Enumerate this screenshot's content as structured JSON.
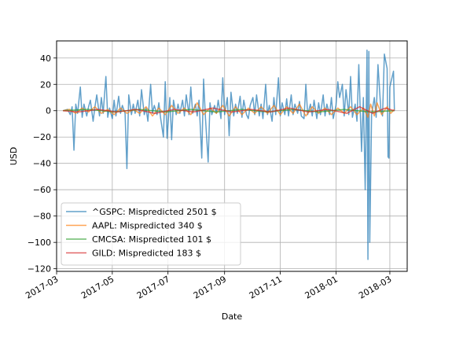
{
  "chart_data": {
    "type": "line",
    "title": "",
    "xlabel": "Date",
    "ylabel": "USD",
    "grid": true,
    "legend_position": "lower-left",
    "xlim": [
      "2017-03-01",
      "2018-03-20"
    ],
    "ylim": [
      -122,
      53
    ],
    "x_ticks": [
      {
        "date": "2017-03-01",
        "label": "2017-03"
      },
      {
        "date": "2017-05-01",
        "label": "2017-05"
      },
      {
        "date": "2017-07-01",
        "label": "2017-07"
      },
      {
        "date": "2017-09-01",
        "label": "2017-09"
      },
      {
        "date": "2017-11-01",
        "label": "2017-11"
      },
      {
        "date": "2018-01-01",
        "label": "2018-01"
      },
      {
        "date": "2018-03-01",
        "label": "2018-03"
      }
    ],
    "y_ticks": [
      40,
      20,
      0,
      -20,
      -40,
      -60,
      -80,
      -100,
      -120
    ],
    "y_tick_labels": [
      "40",
      "20",
      "0",
      "−20",
      "−40",
      "−60",
      "−80",
      "−100",
      "−120"
    ],
    "series": [
      {
        "name": "^GSPC: Mispredicted 2501 $",
        "color": "#1f77b4",
        "points": [
          [
            "2017-03-08",
            0
          ],
          [
            "2017-03-13",
            1
          ],
          [
            "2017-03-16",
            -3
          ],
          [
            "2017-03-18",
            3
          ],
          [
            "2017-03-20",
            -30
          ],
          [
            "2017-03-22",
            5
          ],
          [
            "2017-03-24",
            -2
          ],
          [
            "2017-03-27",
            18
          ],
          [
            "2017-03-29",
            -5
          ],
          [
            "2017-03-31",
            5
          ],
          [
            "2017-04-03",
            -4
          ],
          [
            "2017-04-05",
            3
          ],
          [
            "2017-04-07",
            8
          ],
          [
            "2017-04-10",
            -8
          ],
          [
            "2017-04-12",
            3
          ],
          [
            "2017-04-14",
            12
          ],
          [
            "2017-04-17",
            -4
          ],
          [
            "2017-04-19",
            10
          ],
          [
            "2017-04-21",
            -2
          ],
          [
            "2017-04-24",
            26
          ],
          [
            "2017-04-26",
            -5
          ],
          [
            "2017-04-28",
            2
          ],
          [
            "2017-05-01",
            -6
          ],
          [
            "2017-05-03",
            8
          ],
          [
            "2017-05-05",
            -4
          ],
          [
            "2017-05-08",
            11
          ],
          [
            "2017-05-10",
            -2
          ],
          [
            "2017-05-12",
            4
          ],
          [
            "2017-05-15",
            -2
          ],
          [
            "2017-05-17",
            -44
          ],
          [
            "2017-05-19",
            12
          ],
          [
            "2017-05-22",
            -3
          ],
          [
            "2017-05-24",
            5
          ],
          [
            "2017-05-26",
            -2
          ],
          [
            "2017-05-29",
            8
          ],
          [
            "2017-05-31",
            -4
          ],
          [
            "2017-06-02",
            16
          ],
          [
            "2017-06-05",
            -3
          ],
          [
            "2017-06-07",
            2
          ],
          [
            "2017-06-09",
            -8
          ],
          [
            "2017-06-12",
            20
          ],
          [
            "2017-06-14",
            -2
          ],
          [
            "2017-06-16",
            4
          ],
          [
            "2017-06-19",
            -3
          ],
          [
            "2017-06-21",
            6
          ],
          [
            "2017-06-23",
            -6
          ],
          [
            "2017-06-26",
            -20
          ],
          [
            "2017-06-28",
            22
          ],
          [
            "2017-06-30",
            -21
          ],
          [
            "2017-07-03",
            10
          ],
          [
            "2017-07-05",
            -22
          ],
          [
            "2017-07-07",
            8
          ],
          [
            "2017-07-10",
            -3
          ],
          [
            "2017-07-12",
            5
          ],
          [
            "2017-07-14",
            -2
          ],
          [
            "2017-07-17",
            8
          ],
          [
            "2017-07-19",
            -4
          ],
          [
            "2017-07-21",
            12
          ],
          [
            "2017-07-24",
            -3
          ],
          [
            "2017-07-26",
            18
          ],
          [
            "2017-07-28",
            -2
          ],
          [
            "2017-07-31",
            5
          ],
          [
            "2017-08-02",
            -4
          ],
          [
            "2017-08-04",
            8
          ],
          [
            "2017-08-07",
            -36
          ],
          [
            "2017-08-09",
            24
          ],
          [
            "2017-08-11",
            -5
          ],
          [
            "2017-08-14",
            -39
          ],
          [
            "2017-08-16",
            6
          ],
          [
            "2017-08-18",
            -3
          ],
          [
            "2017-08-21",
            4
          ],
          [
            "2017-08-23",
            -2
          ],
          [
            "2017-08-25",
            8
          ],
          [
            "2017-08-28",
            -6
          ],
          [
            "2017-08-30",
            25
          ],
          [
            "2017-09-01",
            -3
          ],
          [
            "2017-09-04",
            10
          ],
          [
            "2017-09-06",
            -19
          ],
          [
            "2017-09-08",
            14
          ],
          [
            "2017-09-11",
            -4
          ],
          [
            "2017-09-13",
            5
          ],
          [
            "2017-09-15",
            -2
          ],
          [
            "2017-09-18",
            11
          ],
          [
            "2017-09-20",
            -5
          ],
          [
            "2017-09-22",
            8
          ],
          [
            "2017-09-25",
            -3
          ],
          [
            "2017-09-27",
            -6
          ],
          [
            "2017-09-29",
            4
          ],
          [
            "2017-10-02",
            10
          ],
          [
            "2017-10-04",
            -3
          ],
          [
            "2017-10-06",
            12
          ],
          [
            "2017-10-09",
            -4
          ],
          [
            "2017-10-11",
            5
          ],
          [
            "2017-10-13",
            -6
          ],
          [
            "2017-10-16",
            20
          ],
          [
            "2017-10-18",
            -3
          ],
          [
            "2017-10-20",
            4
          ],
          [
            "2017-10-23",
            -8
          ],
          [
            "2017-10-25",
            10
          ],
          [
            "2017-10-27",
            -3
          ],
          [
            "2017-10-30",
            25
          ],
          [
            "2017-11-01",
            -4
          ],
          [
            "2017-11-03",
            6
          ],
          [
            "2017-11-06",
            -3
          ],
          [
            "2017-11-08",
            9
          ],
          [
            "2017-11-10",
            -4
          ],
          [
            "2017-11-13",
            12
          ],
          [
            "2017-11-15",
            -3
          ],
          [
            "2017-11-17",
            5
          ],
          [
            "2017-11-20",
            -2
          ],
          [
            "2017-11-22",
            7
          ],
          [
            "2017-11-24",
            -4
          ],
          [
            "2017-11-27",
            -6
          ],
          [
            "2017-11-29",
            20
          ],
          [
            "2017-12-01",
            -3
          ],
          [
            "2017-12-04",
            5
          ],
          [
            "2017-12-06",
            -4
          ],
          [
            "2017-12-08",
            8
          ],
          [
            "2017-12-11",
            -6
          ],
          [
            "2017-12-13",
            6
          ],
          [
            "2017-12-15",
            -3
          ],
          [
            "2017-12-18",
            12
          ],
          [
            "2017-12-20",
            -4
          ],
          [
            "2017-12-22",
            5
          ],
          [
            "2017-12-25",
            -3
          ],
          [
            "2017-12-27",
            10
          ],
          [
            "2017-12-29",
            -6
          ],
          [
            "2018-01-01",
            4
          ],
          [
            "2018-01-03",
            22
          ],
          [
            "2018-01-05",
            10
          ],
          [
            "2018-01-08",
            20
          ],
          [
            "2018-01-10",
            -4
          ],
          [
            "2018-01-12",
            16
          ],
          [
            "2018-01-15",
            -3
          ],
          [
            "2018-01-17",
            26
          ],
          [
            "2018-01-19",
            -5
          ],
          [
            "2018-01-22",
            5
          ],
          [
            "2018-01-24",
            -8
          ],
          [
            "2018-01-26",
            35
          ],
          [
            "2018-01-29",
            -31
          ],
          [
            "2018-01-31",
            10
          ],
          [
            "2018-02-02",
            -60
          ],
          [
            "2018-02-04",
            46
          ],
          [
            "2018-02-05",
            -113
          ],
          [
            "2018-02-06",
            45
          ],
          [
            "2018-02-07",
            -100
          ],
          [
            "2018-02-09",
            -3
          ],
          [
            "2018-02-12",
            10
          ],
          [
            "2018-02-14",
            -5
          ],
          [
            "2018-02-16",
            35
          ],
          [
            "2018-02-19",
            2
          ],
          [
            "2018-02-21",
            -4
          ],
          [
            "2018-02-23",
            43
          ],
          [
            "2018-02-26",
            32
          ],
          [
            "2018-02-27",
            -35
          ],
          [
            "2018-02-28",
            -36
          ],
          [
            "2018-03-01",
            18
          ],
          [
            "2018-03-05",
            30
          ],
          [
            "2018-03-06",
            0
          ]
        ]
      },
      {
        "name": "AAPL: Mispredicted 340 $",
        "color": "#ff7f0e",
        "points": [
          [
            "2017-03-08",
            0
          ],
          [
            "2017-03-15",
            1
          ],
          [
            "2017-03-22",
            -2
          ],
          [
            "2017-03-29",
            2
          ],
          [
            "2017-04-05",
            -1
          ],
          [
            "2017-04-12",
            3
          ],
          [
            "2017-04-19",
            -2
          ],
          [
            "2017-04-26",
            1
          ],
          [
            "2017-05-03",
            -3
          ],
          [
            "2017-05-10",
            2
          ],
          [
            "2017-05-17",
            -2
          ],
          [
            "2017-05-24",
            1
          ],
          [
            "2017-05-31",
            -2
          ],
          [
            "2017-06-07",
            3
          ],
          [
            "2017-06-14",
            -4
          ],
          [
            "2017-06-21",
            2
          ],
          [
            "2017-06-28",
            -3
          ],
          [
            "2017-07-05",
            4
          ],
          [
            "2017-07-12",
            -2
          ],
          [
            "2017-07-19",
            2
          ],
          [
            "2017-07-26",
            -3
          ],
          [
            "2017-08-02",
            6
          ],
          [
            "2017-08-09",
            -3
          ],
          [
            "2017-08-16",
            2
          ],
          [
            "2017-08-23",
            -2
          ],
          [
            "2017-08-30",
            4
          ],
          [
            "2017-09-06",
            -4
          ],
          [
            "2017-09-13",
            3
          ],
          [
            "2017-09-20",
            -3
          ],
          [
            "2017-09-27",
            2
          ],
          [
            "2017-10-04",
            -2
          ],
          [
            "2017-10-11",
            3
          ],
          [
            "2017-10-18",
            -2
          ],
          [
            "2017-10-25",
            4
          ],
          [
            "2017-11-01",
            -3
          ],
          [
            "2017-11-08",
            3
          ],
          [
            "2017-11-15",
            -2
          ],
          [
            "2017-11-22",
            5
          ],
          [
            "2017-11-29",
            -4
          ],
          [
            "2017-12-06",
            3
          ],
          [
            "2017-12-13",
            -2
          ],
          [
            "2017-12-20",
            2
          ],
          [
            "2017-12-27",
            -3
          ],
          [
            "2018-01-03",
            2
          ],
          [
            "2018-01-10",
            -2
          ],
          [
            "2018-01-17",
            3
          ],
          [
            "2018-01-24",
            -3
          ],
          [
            "2018-01-31",
            2
          ],
          [
            "2018-02-05",
            -5
          ],
          [
            "2018-02-08",
            5
          ],
          [
            "2018-02-12",
            -4
          ],
          [
            "2018-02-15",
            6
          ],
          [
            "2018-02-20",
            -3
          ],
          [
            "2018-02-26",
            3
          ],
          [
            "2018-03-02",
            -2
          ],
          [
            "2018-03-06",
            1
          ]
        ]
      },
      {
        "name": "CMCSA: Mispredicted 101 $",
        "color": "#2ca02c",
        "points": [
          [
            "2017-03-08",
            0
          ],
          [
            "2017-04-05",
            1
          ],
          [
            "2017-05-03",
            -1
          ],
          [
            "2017-05-31",
            1
          ],
          [
            "2017-06-28",
            -1
          ],
          [
            "2017-07-26",
            1
          ],
          [
            "2017-08-23",
            -1
          ],
          [
            "2017-09-20",
            1
          ],
          [
            "2017-10-18",
            -1
          ],
          [
            "2017-11-15",
            1
          ],
          [
            "2017-12-13",
            -1
          ],
          [
            "2018-01-10",
            1
          ],
          [
            "2018-02-07",
            -1
          ],
          [
            "2018-03-06",
            0
          ]
        ]
      },
      {
        "name": "GILD: Mispredicted 183 $",
        "color": "#d62728",
        "points": [
          [
            "2017-03-08",
            0
          ],
          [
            "2017-03-25",
            -1
          ],
          [
            "2017-04-15",
            1
          ],
          [
            "2017-05-06",
            -1
          ],
          [
            "2017-05-27",
            1
          ],
          [
            "2017-06-17",
            -2
          ],
          [
            "2017-07-08",
            1
          ],
          [
            "2017-07-29",
            -1
          ],
          [
            "2017-08-19",
            2
          ],
          [
            "2017-09-09",
            -1
          ],
          [
            "2017-09-30",
            1
          ],
          [
            "2017-10-21",
            -1
          ],
          [
            "2017-11-11",
            2
          ],
          [
            "2017-12-02",
            -1
          ],
          [
            "2017-12-23",
            1
          ],
          [
            "2018-01-13",
            -2
          ],
          [
            "2018-01-27",
            3
          ],
          [
            "2018-02-10",
            -2
          ],
          [
            "2018-02-24",
            2
          ],
          [
            "2018-03-06",
            0
          ]
        ]
      }
    ]
  }
}
